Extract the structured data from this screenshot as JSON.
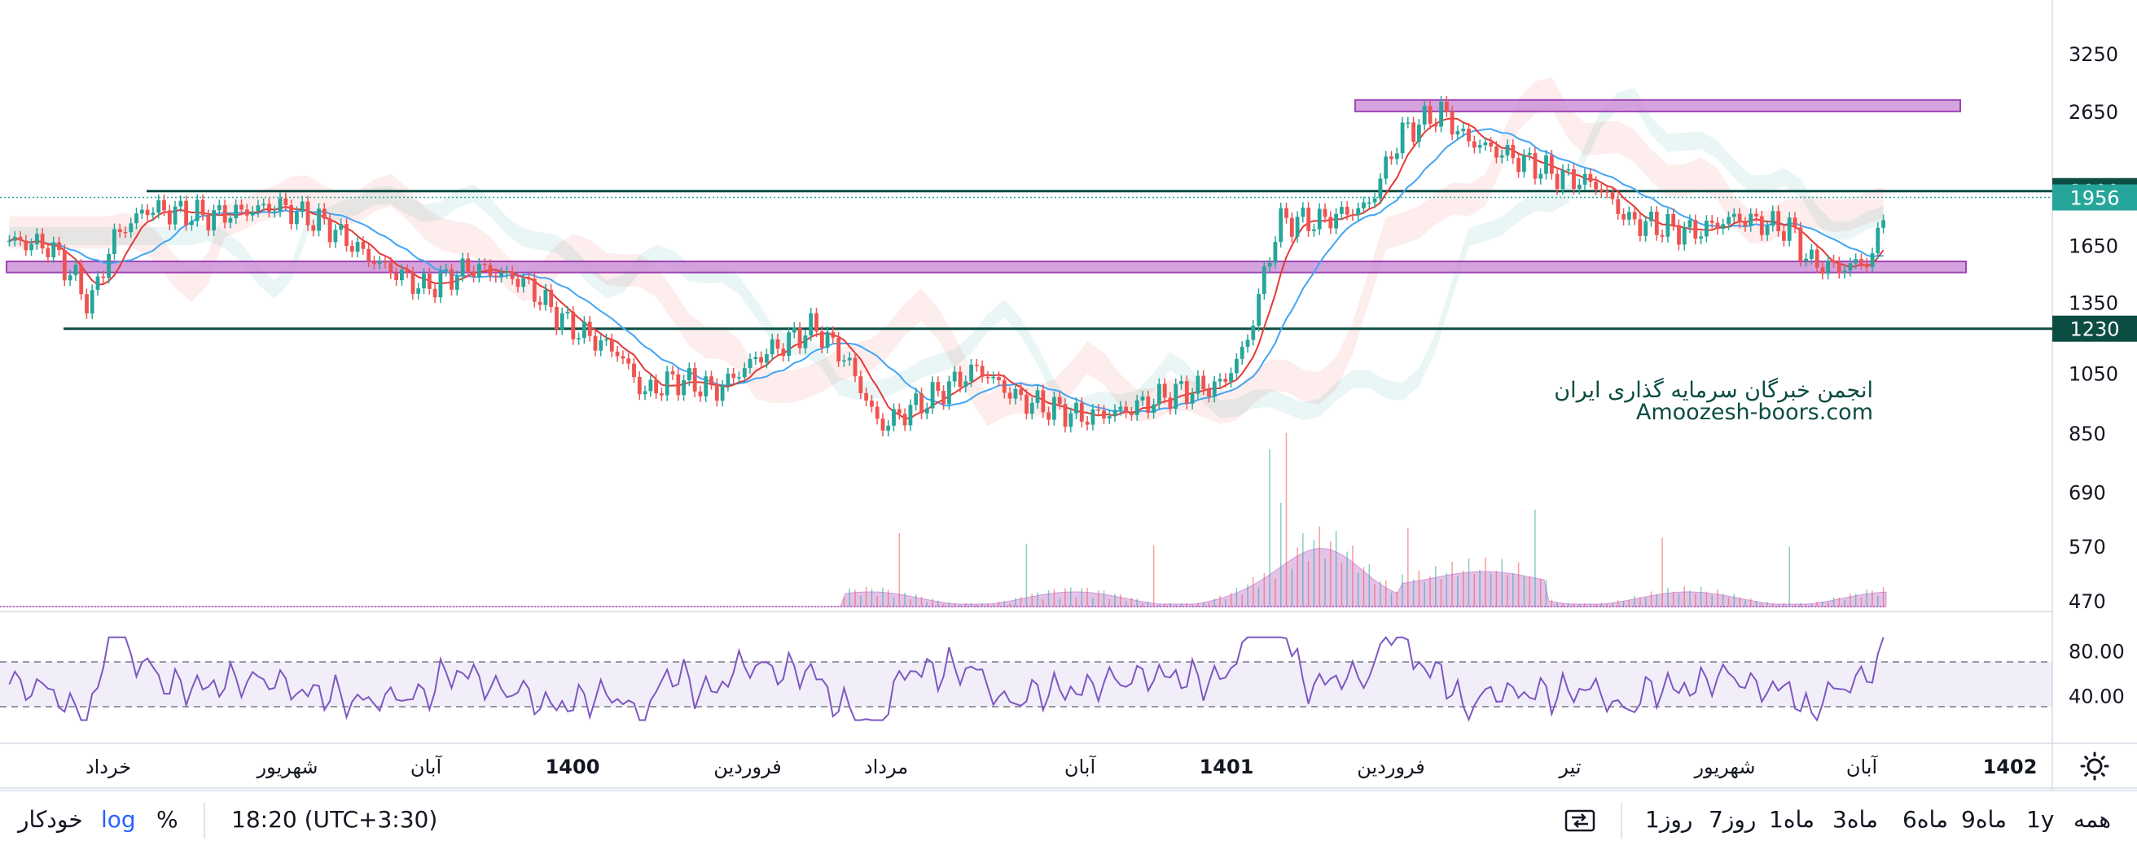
{
  "chart_data": {
    "type": "candlestick",
    "scale": "log",
    "y_ticks": [
      "3250",
      "2650",
      "1650",
      "1350",
      "1050",
      "850",
      "690",
      "570",
      "470"
    ],
    "x_ticks": [
      "خرداد",
      "شهریور",
      "آبان",
      "1400",
      "فروردین",
      "مرداد",
      "آبان",
      "1401",
      "فروردین",
      "تیر",
      "شهریور",
      "آبان",
      "1402"
    ],
    "price_labels": [
      "2000",
      "1956",
      "1230"
    ],
    "horizontal_levels": [
      2000,
      1230
    ],
    "support_resistance_zones": [
      [
        2650,
        2760
      ],
      [
        1500,
        1560
      ]
    ],
    "rsi": {
      "ticks": [
        "80.00",
        "40.00"
      ],
      "band": [
        70,
        30
      ]
    },
    "watermark": {
      "line1": "انجمن خبرگان سرمایه گذاری ایران",
      "line2": "Amoozesh-boors.com"
    }
  },
  "toolbar": {
    "ranges": [
      "همه",
      "1y",
      "9ماه",
      "6ماه",
      "3ماه",
      "1ماه",
      "7روز",
      "1روز"
    ],
    "timezone": "18:20 (UTC+3:30)",
    "percent": "%",
    "log": "log",
    "auto": "خودکار"
  },
  "colors": {
    "up": "#26a69a",
    "down": "#ef5350",
    "ma_fast": "#e53935",
    "ma_slow": "#42a5f5",
    "zone": "#ce93d8",
    "level": "#0b4c43",
    "rsi": "#7e57c2",
    "volume": "#ce93d8"
  }
}
